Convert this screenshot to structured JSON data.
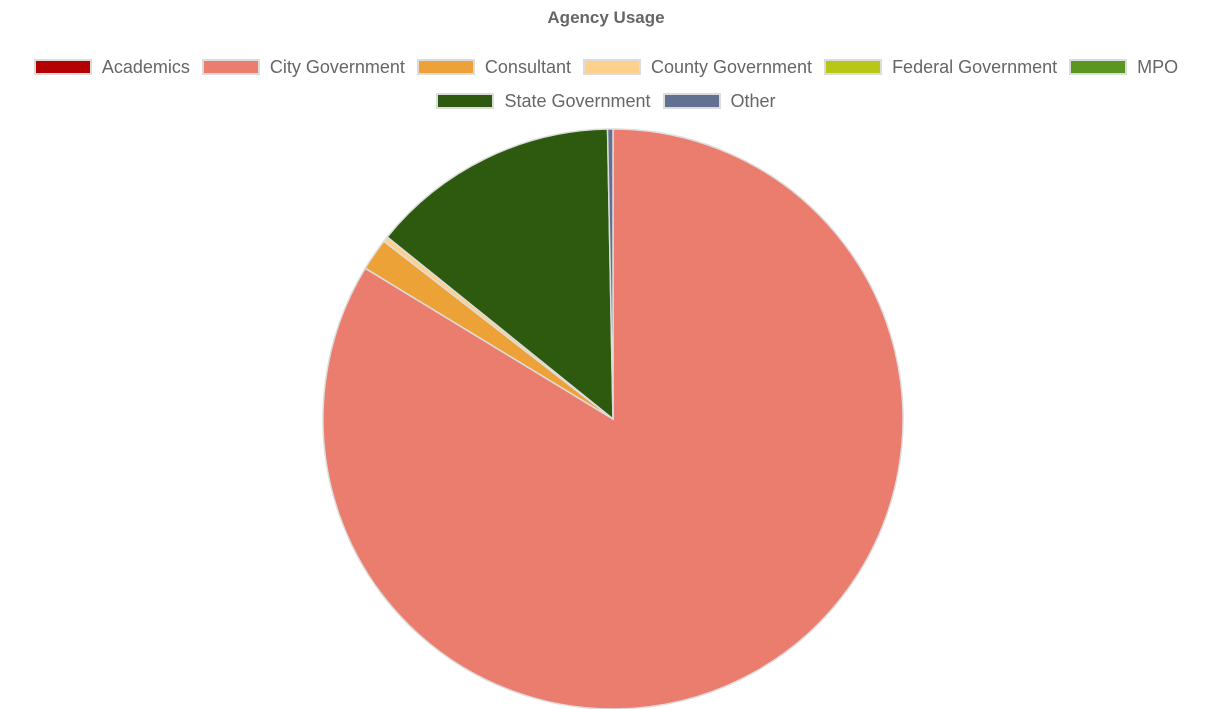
{
  "chart_data": {
    "type": "pie",
    "title": "Agency Usage",
    "legend_position": "top",
    "categories": [
      "Academics",
      "City Government",
      "Consultant",
      "County Government",
      "Federal Government",
      "MPO",
      "State Government",
      "Other"
    ],
    "values": [
      0.0,
      83.7,
      1.8,
      0.3,
      0.0,
      0.0,
      13.9,
      0.3
    ],
    "colors": [
      "#b30000",
      "#eb7d6f",
      "#eca236",
      "#fdd08c",
      "#b8c713",
      "#5b9620",
      "#2e5a10",
      "#637091"
    ]
  }
}
